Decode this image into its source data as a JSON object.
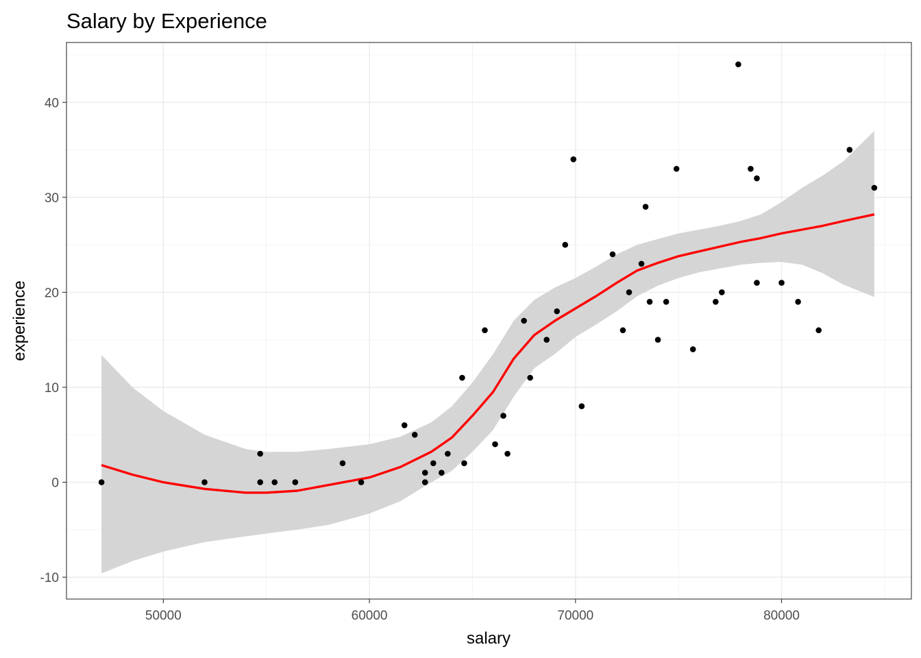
{
  "chart_data": {
    "type": "scatter",
    "title": "Salary by Experience",
    "xlabel": "salary",
    "ylabel": "experience",
    "xlim": [
      45300,
      86300
    ],
    "ylim": [
      -12.3,
      46.3
    ],
    "x_ticks": [
      50000,
      60000,
      70000,
      80000
    ],
    "y_ticks": [
      -10,
      0,
      10,
      20,
      30,
      40
    ],
    "x_tick_labels": [
      "50000",
      "60000",
      "70000",
      "80000"
    ],
    "y_tick_labels": [
      "-10",
      "0",
      "10",
      "20",
      "30",
      "40"
    ],
    "grid": true,
    "points": {
      "color": "#000000",
      "x": [
        47000,
        52000,
        54700,
        54700,
        55400,
        56400,
        58700,
        59600,
        61700,
        62200,
        62700,
        62700,
        63100,
        63500,
        63800,
        64500,
        64600,
        65600,
        66100,
        66500,
        66700,
        67500,
        67800,
        68600,
        69100,
        69500,
        69900,
        70300,
        71800,
        72300,
        72600,
        73200,
        73400,
        73600,
        74000,
        74400,
        74900,
        75700,
        76800,
        77100,
        77900,
        78500,
        78800,
        78800,
        80000,
        80800,
        81800,
        83300,
        84500
      ],
      "y": [
        0,
        0,
        3,
        0,
        0,
        0,
        2,
        0,
        6,
        5,
        0,
        1,
        2,
        1,
        3,
        11,
        2,
        16,
        4,
        7,
        3,
        17,
        11,
        15,
        18,
        25,
        34,
        8,
        24,
        16,
        20,
        23,
        29,
        19,
        15,
        19,
        33,
        14,
        19,
        20,
        44,
        33,
        21,
        32,
        21,
        19,
        16,
        35,
        31
      ]
    },
    "smooth": {
      "color": "#ff0000",
      "band_color": "#d3d3d3",
      "x": [
        47000,
        48500,
        50000,
        52000,
        54000,
        55000,
        56500,
        58000,
        60000,
        61500,
        63000,
        64000,
        65000,
        66000,
        67000,
        68000,
        69000,
        70000,
        71000,
        72000,
        73000,
        74000,
        75000,
        76000,
        77000,
        78000,
        79000,
        80000,
        81000,
        82000,
        83000,
        84500
      ],
      "y": [
        1.8,
        0.8,
        0.0,
        -0.7,
        -1.1,
        -1.1,
        -0.9,
        -0.3,
        0.5,
        1.6,
        3.2,
        4.7,
        7.0,
        9.5,
        13.0,
        15.5,
        17.0,
        18.3,
        19.6,
        21.0,
        22.3,
        23.1,
        23.8,
        24.3,
        24.8,
        25.3,
        25.7,
        26.2,
        26.6,
        27.0,
        27.5,
        28.2
      ],
      "upper": [
        13.4,
        10.0,
        7.5,
        5.0,
        3.5,
        3.2,
        3.2,
        3.5,
        4.0,
        4.8,
        6.3,
        8.0,
        10.5,
        13.5,
        17.0,
        19.2,
        20.5,
        21.5,
        22.7,
        24.0,
        25.0,
        25.6,
        26.2,
        26.6,
        27.0,
        27.5,
        28.2,
        29.5,
        31.0,
        32.3,
        33.8,
        37.0
      ],
      "lower": [
        -9.6,
        -8.3,
        -7.3,
        -6.3,
        -5.7,
        -5.4,
        -5.0,
        -4.5,
        -3.3,
        -2.0,
        0.0,
        1.2,
        3.2,
        5.5,
        9.0,
        12.0,
        13.5,
        15.3,
        16.6,
        18.0,
        19.6,
        20.7,
        21.5,
        22.1,
        22.5,
        22.9,
        23.1,
        23.2,
        22.9,
        22.0,
        20.8,
        19.5
      ]
    }
  }
}
